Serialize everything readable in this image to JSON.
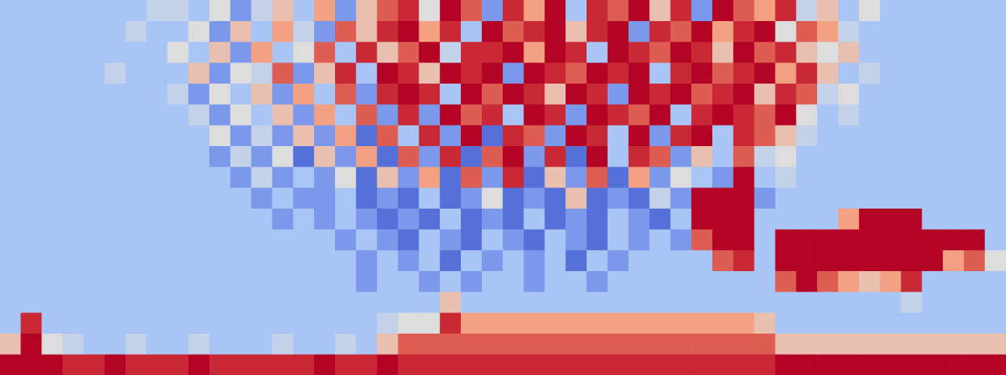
{
  "chart_data": {
    "type": "heatmap",
    "grid": false,
    "tick_labels": false,
    "zlim": [
      0,
      10
    ],
    "cells": [
      [
        3,
        3,
        3,
        3,
        3,
        3,
        3,
        4,
        4,
        3,
        5,
        2,
        4,
        6,
        3,
        7,
        2,
        6,
        8,
        9,
        5,
        10,
        8,
        2,
        9,
        7,
        10,
        3,
        9,
        8,
        10,
        6,
        9,
        2,
        10,
        8,
        7,
        9,
        4,
        6,
        3,
        5,
        3,
        3,
        3,
        3,
        3,
        3
      ],
      [
        3,
        3,
        3,
        3,
        3,
        3,
        4,
        3,
        3,
        5,
        2,
        6,
        3,
        7,
        4,
        2,
        8,
        6,
        9,
        10,
        7,
        9,
        3,
        10,
        8,
        9,
        10,
        6,
        9,
        10,
        2,
        9,
        8,
        10,
        7,
        9,
        10,
        5,
        8,
        7,
        4,
        3,
        3,
        3,
        3,
        3,
        3,
        3
      ],
      [
        3,
        3,
        3,
        3,
        3,
        3,
        3,
        3,
        5,
        3,
        6,
        2,
        7,
        3,
        5,
        8,
        3,
        9,
        6,
        8,
        10,
        4,
        9,
        9,
        10,
        7,
        10,
        9,
        3,
        10,
        9,
        8,
        10,
        9,
        6,
        10,
        8,
        9,
        6,
        5,
        6,
        3,
        3,
        3,
        3,
        3,
        3,
        3
      ],
      [
        3,
        3,
        3,
        3,
        3,
        4,
        3,
        3,
        3,
        6,
        2,
        5,
        4,
        8,
        2,
        6,
        9,
        3,
        10,
        9,
        6,
        10,
        9,
        10,
        2,
        10,
        9,
        8,
        10,
        9,
        10,
        3,
        9,
        10,
        8,
        9,
        10,
        7,
        9,
        6,
        3,
        4,
        3,
        3,
        3,
        3,
        3,
        3
      ],
      [
        3,
        3,
        3,
        3,
        3,
        3,
        3,
        3,
        4,
        2,
        5,
        3,
        6,
        2,
        7,
        3,
        8,
        2,
        9,
        10,
        9,
        3,
        10,
        8,
        10,
        9,
        6,
        10,
        9,
        2,
        10,
        9,
        10,
        8,
        9,
        10,
        6,
        9,
        8,
        4,
        5,
        3,
        3,
        3,
        3,
        3,
        3,
        3
      ],
      [
        3,
        3,
        3,
        3,
        3,
        3,
        3,
        3,
        3,
        4,
        2,
        5,
        3,
        6,
        2,
        7,
        3,
        8,
        2,
        9,
        2,
        10,
        8,
        9,
        3,
        10,
        9,
        2,
        10,
        9,
        8,
        10,
        3,
        9,
        10,
        9,
        8,
        10,
        5,
        3,
        4,
        3,
        3,
        3,
        3,
        3,
        3,
        3
      ],
      [
        3,
        3,
        3,
        3,
        3,
        3,
        3,
        3,
        3,
        3,
        5,
        2,
        4,
        2,
        6,
        2,
        7,
        1,
        8,
        3,
        9,
        2,
        10,
        1,
        9,
        8,
        2,
        10,
        9,
        3,
        10,
        2,
        9,
        10,
        3,
        9,
        8,
        6,
        4,
        3,
        3,
        3,
        3,
        3,
        3,
        3,
        3,
        3
      ],
      [
        3,
        3,
        3,
        3,
        3,
        3,
        3,
        3,
        3,
        3,
        2,
        4,
        2,
        5,
        1,
        6,
        2,
        7,
        1,
        8,
        2,
        9,
        1,
        8,
        10,
        2,
        9,
        1,
        10,
        3,
        9,
        8,
        2,
        6,
        3,
        8,
        4,
        5,
        3,
        3,
        3,
        3,
        3,
        3,
        3,
        3,
        3,
        3
      ],
      [
        3,
        3,
        3,
        3,
        3,
        3,
        3,
        3,
        3,
        3,
        3,
        2,
        4,
        2,
        3,
        2,
        5,
        1,
        6,
        2,
        7,
        1,
        8,
        2,
        9,
        1,
        6,
        2,
        8,
        1,
        7,
        2,
        5,
        3,
        2,
        10,
        3,
        4,
        3,
        3,
        3,
        3,
        3,
        3,
        3,
        3,
        3,
        3
      ],
      [
        3,
        3,
        3,
        3,
        3,
        3,
        3,
        3,
        3,
        3,
        3,
        3,
        2,
        3,
        2,
        2,
        3,
        1,
        2,
        1,
        3,
        1,
        2,
        5,
        1,
        2,
        1,
        6,
        1,
        2,
        1,
        4,
        2,
        10,
        10,
        10,
        2,
        3,
        3,
        3,
        3,
        3,
        3,
        3,
        3,
        3,
        3,
        3
      ],
      [
        3,
        3,
        3,
        3,
        3,
        3,
        3,
        3,
        3,
        3,
        3,
        3,
        3,
        2,
        3,
        2,
        3,
        2,
        1,
        2,
        1,
        3,
        1,
        2,
        1,
        3,
        1,
        2,
        1,
        3,
        2,
        1,
        3,
        10,
        10,
        10,
        3,
        3,
        3,
        3,
        7,
        10,
        10,
        10,
        3,
        3,
        3,
        3
      ],
      [
        3,
        3,
        3,
        3,
        3,
        3,
        3,
        3,
        3,
        3,
        3,
        3,
        3,
        3,
        3,
        3,
        2,
        3,
        2,
        1,
        3,
        2,
        1,
        3,
        2,
        1,
        3,
        2,
        1,
        3,
        2,
        3,
        2,
        8,
        10,
        10,
        3,
        10,
        10,
        10,
        10,
        10,
        10,
        10,
        10,
        10,
        10,
        3
      ],
      [
        3,
        3,
        3,
        3,
        3,
        3,
        3,
        3,
        3,
        3,
        3,
        3,
        3,
        3,
        3,
        3,
        3,
        2,
        3,
        2,
        3,
        1,
        3,
        2,
        3,
        2,
        3,
        1,
        3,
        2,
        3,
        3,
        3,
        3,
        8,
        9,
        3,
        10,
        10,
        10,
        10,
        10,
        10,
        10,
        10,
        7,
        8,
        5
      ],
      [
        3,
        3,
        3,
        3,
        3,
        3,
        3,
        3,
        3,
        3,
        3,
        3,
        3,
        3,
        3,
        3,
        3,
        2,
        3,
        3,
        2,
        3,
        2,
        3,
        3,
        2,
        3,
        3,
        2,
        3,
        3,
        3,
        3,
        3,
        3,
        3,
        3,
        8,
        10,
        8,
        7,
        6,
        7,
        9,
        3,
        3,
        3,
        3
      ],
      [
        3,
        3,
        3,
        3,
        3,
        3,
        3,
        3,
        3,
        3,
        3,
        3,
        3,
        3,
        3,
        3,
        3,
        3,
        3,
        3,
        3,
        6,
        3,
        3,
        3,
        3,
        3,
        3,
        3,
        3,
        3,
        3,
        3,
        3,
        3,
        3,
        3,
        3,
        3,
        3,
        3,
        3,
        3,
        4,
        3,
        3,
        3,
        3
      ],
      [
        3,
        9,
        3,
        3,
        3,
        3,
        3,
        3,
        3,
        3,
        3,
        3,
        3,
        3,
        3,
        3,
        3,
        3,
        4,
        5,
        5,
        9,
        7,
        7,
        7,
        7,
        7,
        7,
        7,
        7,
        7,
        7,
        7,
        7,
        7,
        7,
        6,
        3,
        3,
        3,
        3,
        3,
        3,
        3,
        3,
        3,
        3,
        3
      ],
      [
        6,
        10,
        5,
        4,
        3,
        3,
        4,
        3,
        3,
        4,
        3,
        3,
        3,
        4,
        3,
        3,
        4,
        3,
        6,
        8,
        8,
        8,
        8,
        8,
        8,
        8,
        8,
        8,
        8,
        8,
        8,
        8,
        8,
        8,
        8,
        8,
        8,
        6,
        6,
        6,
        6,
        6,
        6,
        6,
        6,
        6,
        6,
        6
      ],
      [
        10,
        10,
        10,
        9,
        9,
        10,
        9,
        9,
        9,
        10,
        9,
        9,
        9,
        9,
        9,
        10,
        9,
        9,
        10,
        9,
        9,
        9,
        9,
        9,
        9,
        9,
        9,
        9,
        9,
        9,
        9,
        9,
        9,
        9,
        9,
        9,
        9,
        10,
        10,
        10,
        10,
        10,
        10,
        10,
        10,
        10,
        10,
        10
      ]
    ]
  }
}
